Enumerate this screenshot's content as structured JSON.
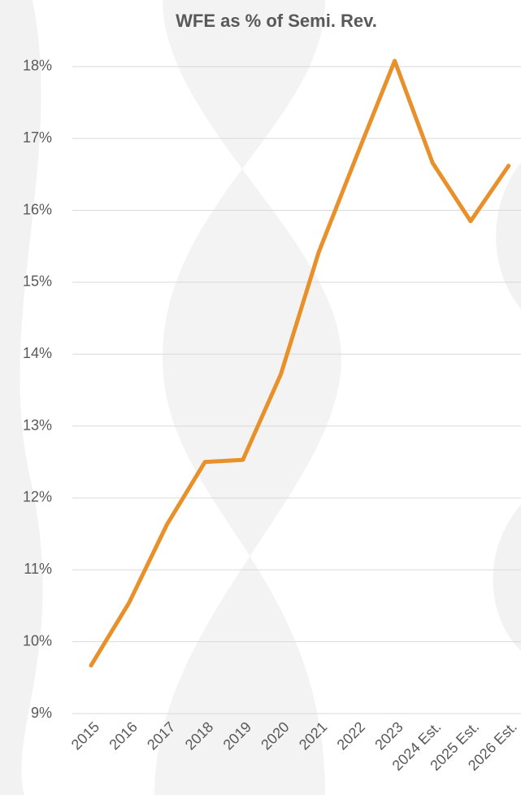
{
  "chart_data": {
    "type": "line",
    "title": "WFE as % of Semi. Rev.",
    "categories": [
      "2015",
      "2016",
      "2017",
      "2018",
      "2019",
      "2020",
      "2021",
      "2022",
      "2023",
      "2024 Est.",
      "2025 Est.",
      "2026 Est."
    ],
    "series": [
      {
        "name": "WFE as % of Semi. Rev.",
        "color": "#e8902a",
        "values": [
          9.67,
          10.54,
          11.63,
          12.5,
          12.53,
          13.72,
          15.42,
          16.76,
          18.08,
          16.66,
          15.85,
          16.62
        ]
      }
    ],
    "ylim": [
      9,
      18.1
    ],
    "yticks": [
      {
        "value": 9,
        "label": "9%"
      },
      {
        "value": 10,
        "label": "10%"
      },
      {
        "value": 11,
        "label": "11%"
      },
      {
        "value": 12,
        "label": "12%"
      },
      {
        "value": 13,
        "label": "13%"
      },
      {
        "value": 14,
        "label": "14%"
      },
      {
        "value": 15,
        "label": "15%"
      },
      {
        "value": 16,
        "label": "16%"
      },
      {
        "value": 17,
        "label": "17%"
      },
      {
        "value": 18,
        "label": "18%"
      }
    ],
    "grid": true
  }
}
